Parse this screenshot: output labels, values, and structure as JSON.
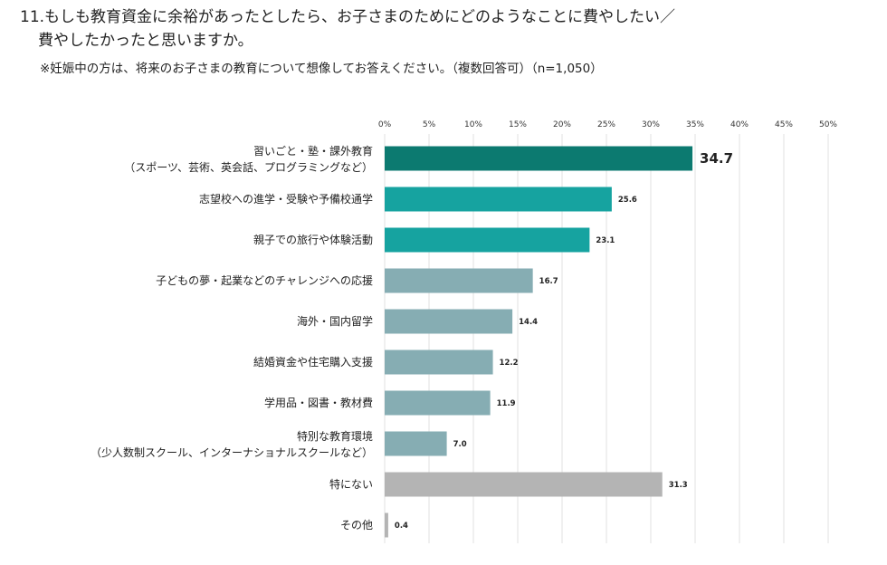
{
  "header": {
    "line1": "11.もしも教育資金に余裕があったとしたら、お子さまのためにどのようなことに費やしたい／",
    "line2": "費やしたかったと思いますか。",
    "note": "※妊娠中の方は、将来のお子さまの教育について想像してお答えください。（複数回答可）（n=1,050）"
  },
  "chart_data": {
    "type": "bar",
    "orientation": "horizontal",
    "xlim": [
      0,
      50
    ],
    "x_ticks": [
      "0%",
      "5%",
      "10%",
      "15%",
      "20%",
      "25%",
      "30%",
      "35%",
      "40%",
      "45%",
      "50%"
    ],
    "grid": true,
    "categories": [
      [
        "習いごと・塾・課外教育",
        "（スポーツ、芸術、英会話、プログラミングなど）"
      ],
      [
        "志望校への進学・受験や予備校通学"
      ],
      [
        "親子での旅行や体験活動"
      ],
      [
        "子どもの夢・起業などのチャレンジへの応援"
      ],
      [
        "海外・国内留学"
      ],
      [
        "結婚資金や住宅購入支援"
      ],
      [
        "学用品・図書・教材費"
      ],
      [
        "特別な教育環境",
        "（少人数制スクール、インターナショナルスクールなど）"
      ],
      [
        "特にない"
      ],
      [
        "その他"
      ]
    ],
    "values": [
      34.7,
      25.6,
      23.1,
      16.7,
      14.4,
      12.2,
      11.9,
      7.0,
      31.3,
      0.4
    ],
    "value_labels": [
      "34.7",
      "25.6",
      "23.1",
      "16.7",
      "14.4",
      "12.2",
      "11.9",
      "7.0",
      "31.3",
      "0.4"
    ],
    "colors": [
      "#0c7a70",
      "#16a3a0",
      "#16a3a0",
      "#86adb3",
      "#86adb3",
      "#86adb3",
      "#86adb3",
      "#86adb3",
      "#b4b4b4",
      "#b4b4b4"
    ]
  }
}
